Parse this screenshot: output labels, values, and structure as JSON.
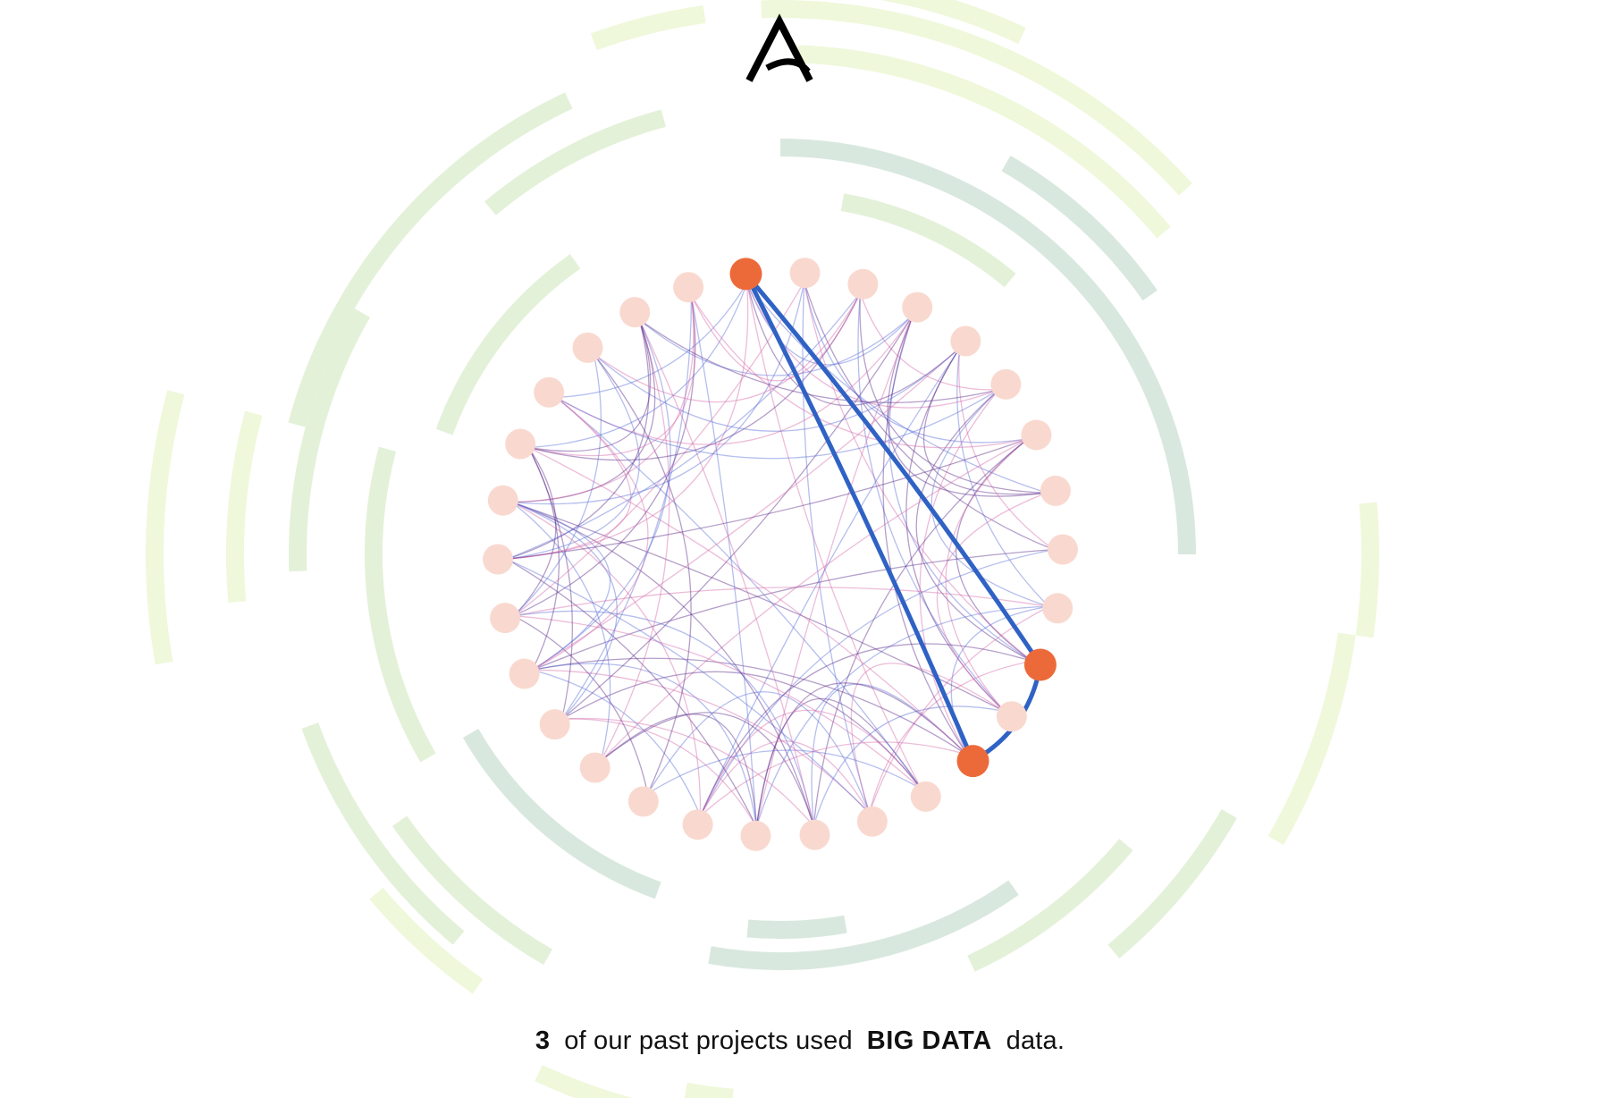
{
  "caption": {
    "count": "3",
    "text_before": "of our past projects used",
    "category": "BIG DATA",
    "text_after": "data."
  },
  "diagram": {
    "node_count": 30,
    "highlighted_nodes": [
      0,
      10,
      12
    ],
    "highlighted_links": [
      [
        0,
        10
      ],
      [
        0,
        12
      ],
      [
        10,
        12
      ]
    ],
    "colors": {
      "node": "#f9d9cf",
      "node_highlight": "#ec6a39",
      "link_blue": "#5a6fd6",
      "link_purple": "#5b2a8a",
      "link_pink": "#d46aaa",
      "link_highlight": "#2f62c4",
      "ring_light": "#eff8da",
      "ring_mid": "#e4f1d9",
      "ring_teal": "#d9e8df",
      "logo": "#000000"
    }
  }
}
